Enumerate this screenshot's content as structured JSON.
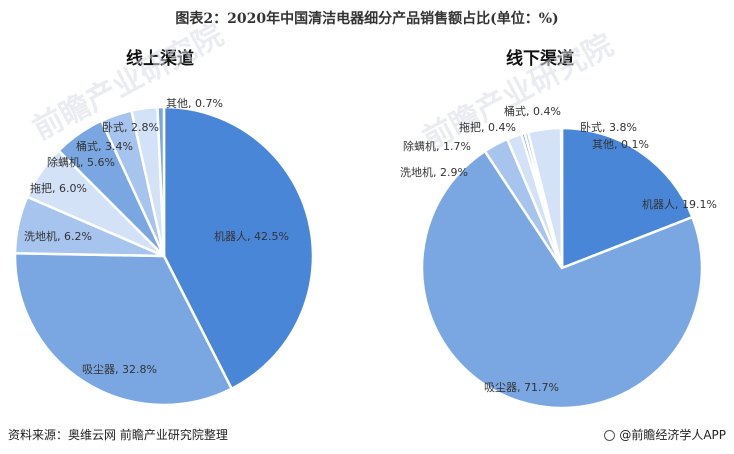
{
  "title": "图表2：2020年中国清洁电器细分产品销售额占比(单位：%)",
  "watermark": "前瞻产业研究院",
  "footer": {
    "source": "资料来源：奥维云网 前瞻产业研究院整理",
    "brand": "@前瞻经济学人APP"
  },
  "colors": {
    "dark": "#4a86d8",
    "mid": "#7aa7e2",
    "light": "#a6c4ee",
    "pale": "#d3e2f7"
  },
  "chart_data": [
    {
      "type": "pie",
      "title": "线上渠道",
      "slices": [
        {
          "label": "机器人",
          "value": 42.5,
          "display": "机器人, 42.5%",
          "color": "#4a86d8"
        },
        {
          "label": "吸尘器",
          "value": 32.8,
          "display": "吸尘器, 32.8%",
          "color": "#7aa7e2"
        },
        {
          "label": "洗地机",
          "value": 6.2,
          "display": "洗地机, 6.2%",
          "color": "#a6c4ee"
        },
        {
          "label": "拖把",
          "value": 6.0,
          "display": "拖把, 6.0%",
          "color": "#d3e2f7"
        },
        {
          "label": "除螨机",
          "value": 5.6,
          "display": "除螨机, 5.6%",
          "color": "#7aa7e2"
        },
        {
          "label": "桶式",
          "value": 3.4,
          "display": "桶式, 3.4%",
          "color": "#a6c4ee"
        },
        {
          "label": "卧式",
          "value": 2.8,
          "display": "卧式, 2.8%",
          "color": "#d3e2f7"
        },
        {
          "label": "其他",
          "value": 0.7,
          "display": "其他, 0.7%",
          "color": "#7aa7e2"
        }
      ]
    },
    {
      "type": "pie",
      "title": "线下渠道",
      "slices": [
        {
          "label": "机器人",
          "value": 19.1,
          "display": "机器人, 19.1%",
          "color": "#4a86d8"
        },
        {
          "label": "吸尘器",
          "value": 71.7,
          "display": "吸尘器, 71.7%",
          "color": "#7aa7e2"
        },
        {
          "label": "洗地机",
          "value": 2.9,
          "display": "洗地机, 2.9%",
          "color": "#a6c4ee"
        },
        {
          "label": "除螨机",
          "value": 1.7,
          "display": "除螨机, 1.7%",
          "color": "#d3e2f7"
        },
        {
          "label": "拖把",
          "value": 0.4,
          "display": "拖把, 0.4%",
          "color": "#7aa7e2"
        },
        {
          "label": "桶式",
          "value": 0.4,
          "display": "桶式, 0.4%",
          "color": "#a6c4ee"
        },
        {
          "label": "卧式",
          "value": 3.8,
          "display": "卧式, 3.8%",
          "color": "#d3e2f7"
        },
        {
          "label": "其他",
          "value": 0.1,
          "display": "其他, 0.1%",
          "color": "#a6c4ee"
        }
      ]
    }
  ]
}
